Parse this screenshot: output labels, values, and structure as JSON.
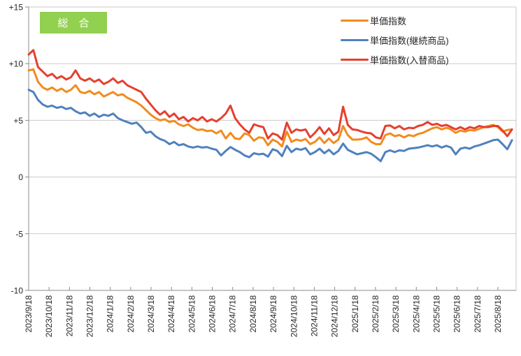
{
  "chart_data": {
    "type": "line",
    "title_badge": "総　合",
    "grid": true,
    "legend_position": "top-right",
    "y_axis": {
      "min": -10,
      "max": 15,
      "ticks": [
        {
          "label": "+15",
          "value": 15
        },
        {
          "label": "+10",
          "value": 10
        },
        {
          "label": "+5",
          "value": 5
        },
        {
          "label": "0",
          "value": 0
        },
        {
          "label": "-5",
          "value": -5
        },
        {
          "label": "-10",
          "value": -10
        }
      ]
    },
    "x_axis": {
      "labels": [
        "2023/9/18",
        "2023/10/18",
        "2023/11/18",
        "2023/12/18",
        "2024/1/18",
        "2024/2/18",
        "2024/3/18",
        "2024/4/18",
        "2024/5/18",
        "2024/6/18",
        "2024/7/18",
        "2024/8/18",
        "2024/9/18",
        "2024/10/18",
        "2024/11/18",
        "2024/12/18",
        "2025/1/18",
        "2025/2/18",
        "2025/3/18",
        "2025/4/18",
        "2025/5/18",
        "2025/6/18",
        "2025/7/18",
        "2025/8/18"
      ],
      "last_label_point_index": 100,
      "total_points": 104,
      "interval": "weekly"
    },
    "series": [
      {
        "name": "単価指数",
        "color": "#F28B1E",
        "values": [
          9.4,
          9.5,
          8.4,
          7.9,
          7.7,
          7.9,
          7.6,
          7.8,
          7.5,
          7.7,
          8.1,
          7.5,
          7.4,
          7.6,
          7.3,
          7.5,
          7.1,
          7.3,
          7.5,
          7.2,
          7.3,
          7.0,
          6.8,
          6.6,
          6.3,
          5.9,
          5.5,
          5.2,
          5.0,
          5.1,
          4.85,
          4.95,
          4.65,
          4.5,
          4.65,
          4.35,
          4.15,
          4.2,
          4.05,
          4.1,
          3.85,
          4.1,
          3.4,
          3.9,
          3.4,
          3.35,
          3.85,
          3.7,
          3.2,
          3.5,
          3.45,
          2.8,
          3.3,
          3.1,
          2.7,
          4.0,
          3.1,
          3.3,
          3.2,
          3.35,
          2.9,
          3.1,
          3.5,
          3.0,
          3.4,
          3.0,
          3.3,
          4.5,
          3.7,
          3.3,
          3.3,
          3.35,
          3.5,
          3.1,
          2.9,
          2.9,
          3.7,
          3.85,
          3.6,
          3.7,
          3.5,
          3.7,
          3.6,
          3.8,
          3.9,
          4.1,
          4.3,
          4.4,
          4.2,
          4.35,
          4.2,
          3.9,
          4.1,
          4.0,
          4.15,
          4.1,
          4.25,
          4.4,
          4.5,
          4.6,
          4.4,
          4.0,
          4.15,
          4.2
        ]
      },
      {
        "name": "単価指数(継続商品)",
        "color": "#4F81BD",
        "values": [
          7.7,
          7.5,
          6.8,
          6.4,
          6.2,
          6.3,
          6.1,
          6.2,
          6.0,
          6.1,
          5.8,
          5.6,
          5.7,
          5.4,
          5.6,
          5.3,
          5.5,
          5.4,
          5.6,
          5.2,
          5.0,
          4.85,
          4.7,
          4.8,
          4.4,
          3.9,
          4.0,
          3.6,
          3.35,
          3.2,
          2.9,
          3.1,
          2.8,
          2.9,
          2.7,
          2.6,
          2.7,
          2.6,
          2.65,
          2.5,
          2.4,
          1.9,
          2.3,
          2.65,
          2.4,
          2.2,
          1.9,
          1.75,
          2.1,
          2.0,
          2.05,
          1.8,
          2.45,
          2.3,
          1.85,
          2.75,
          2.2,
          2.5,
          2.4,
          2.55,
          2.0,
          2.2,
          2.5,
          2.1,
          2.4,
          2.0,
          2.3,
          2.95,
          2.4,
          2.2,
          2.0,
          2.1,
          2.2,
          2.05,
          1.75,
          1.4,
          2.2,
          2.35,
          2.2,
          2.35,
          2.3,
          2.5,
          2.55,
          2.6,
          2.7,
          2.8,
          2.7,
          2.8,
          2.6,
          2.75,
          2.6,
          2.0,
          2.5,
          2.6,
          2.5,
          2.7,
          2.8,
          2.95,
          3.1,
          3.25,
          3.3,
          2.9,
          2.45,
          3.25
        ]
      },
      {
        "name": "単価指数(入替商品)",
        "color": "#E5402E",
        "values": [
          10.8,
          11.2,
          9.7,
          9.3,
          8.9,
          9.1,
          8.7,
          8.9,
          8.6,
          8.8,
          9.4,
          8.7,
          8.5,
          8.7,
          8.4,
          8.6,
          8.2,
          8.4,
          8.7,
          8.3,
          8.5,
          8.1,
          7.9,
          7.7,
          7.5,
          6.9,
          6.4,
          5.9,
          5.5,
          5.8,
          5.3,
          5.6,
          5.1,
          5.3,
          4.9,
          5.2,
          5.0,
          5.3,
          4.9,
          5.1,
          4.9,
          5.2,
          5.6,
          6.3,
          5.2,
          4.65,
          4.2,
          3.9,
          4.65,
          4.5,
          4.4,
          3.4,
          3.85,
          3.7,
          3.3,
          4.8,
          3.9,
          4.2,
          4.1,
          4.2,
          3.5,
          3.9,
          4.4,
          3.8,
          4.3,
          3.7,
          4.0,
          6.2,
          4.6,
          4.2,
          4.15,
          4.0,
          3.9,
          3.85,
          3.5,
          3.4,
          4.5,
          4.55,
          4.3,
          4.5,
          4.2,
          4.35,
          4.3,
          4.5,
          4.6,
          4.85,
          4.6,
          4.7,
          4.5,
          4.6,
          4.4,
          4.2,
          4.4,
          4.2,
          4.4,
          4.3,
          4.5,
          4.4,
          4.4,
          4.5,
          4.5,
          4.1,
          3.6,
          4.2
        ]
      }
    ]
  }
}
